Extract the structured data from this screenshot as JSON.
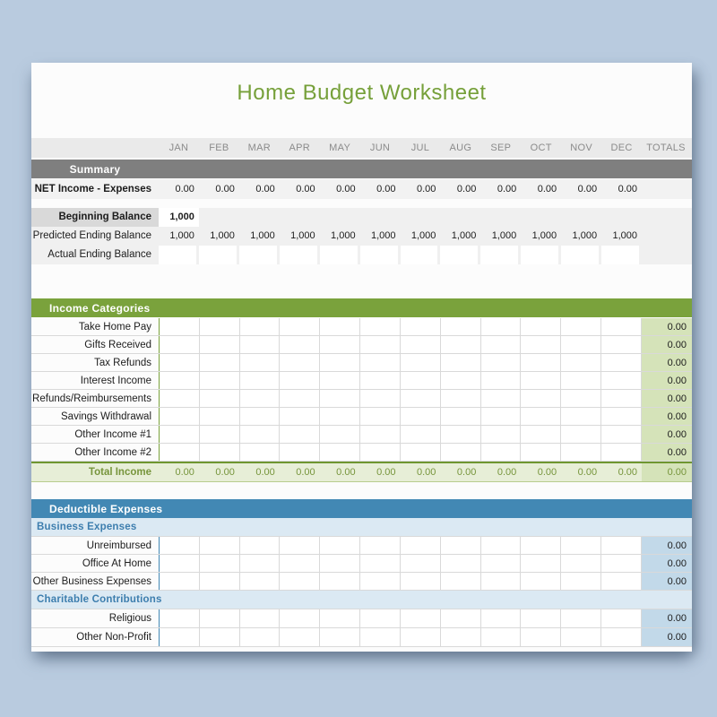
{
  "title": "Home Budget Worksheet",
  "columns": {
    "months": [
      "JAN",
      "FEB",
      "MAR",
      "APR",
      "MAY",
      "JUN",
      "JUL",
      "AUG",
      "SEP",
      "OCT",
      "NOV",
      "DEC"
    ],
    "totals_label": "TOTALS"
  },
  "summary": {
    "header": "Summary",
    "net_row": {
      "label": "NET Income - Expenses",
      "values": [
        "0.00",
        "0.00",
        "0.00",
        "0.00",
        "0.00",
        "0.00",
        "0.00",
        "0.00",
        "0.00",
        "0.00",
        "0.00",
        "0.00"
      ],
      "total": ""
    },
    "beginning_row": {
      "label": "Beginning Balance",
      "values": [
        "1,000",
        "",
        "",
        "",
        "",
        "",
        "",
        "",
        "",
        "",
        "",
        ""
      ]
    },
    "predicted_row": {
      "label": "Predicted Ending Balance",
      "values": [
        "1,000",
        "1,000",
        "1,000",
        "1,000",
        "1,000",
        "1,000",
        "1,000",
        "1,000",
        "1,000",
        "1,000",
        "1,000",
        "1,000"
      ]
    },
    "actual_row": {
      "label": "Actual Ending Balance",
      "values": [
        "",
        "",
        "",
        "",
        "",
        "",
        "",
        "",
        "",
        "",
        "",
        ""
      ]
    }
  },
  "income": {
    "header": "Income Categories",
    "rows": [
      {
        "label": "Take Home Pay",
        "total": "0.00"
      },
      {
        "label": "Gifts Received",
        "total": "0.00"
      },
      {
        "label": "Tax Refunds",
        "total": "0.00"
      },
      {
        "label": "Interest Income",
        "total": "0.00"
      },
      {
        "label": "Refunds/Reimbursements",
        "total": "0.00"
      },
      {
        "label": "Savings Withdrawal",
        "total": "0.00"
      },
      {
        "label": "Other Income #1",
        "total": "0.00"
      },
      {
        "label": "Other Income #2",
        "total": "0.00"
      }
    ],
    "total_row": {
      "label": "Total Income",
      "values": [
        "0.00",
        "0.00",
        "0.00",
        "0.00",
        "0.00",
        "0.00",
        "0.00",
        "0.00",
        "0.00",
        "0.00",
        "0.00",
        "0.00"
      ],
      "total": "0.00"
    }
  },
  "expenses": {
    "header": "Deductible Expenses",
    "business": {
      "subheader": "Business Expenses",
      "rows": [
        {
          "label": "Unreimbursed",
          "total": "0.00"
        },
        {
          "label": "Office At Home",
          "total": "0.00"
        },
        {
          "label": "Other Business Expenses",
          "total": "0.00"
        }
      ]
    },
    "charitable": {
      "subheader": "Charitable Contributions",
      "rows": [
        {
          "label": "Religious",
          "total": "0.00"
        },
        {
          "label": "Other Non-Profit",
          "total": "0.00"
        }
      ]
    }
  },
  "colors": {
    "page-bg": "#b9cbdf",
    "title-green": "#76a03a",
    "green": "#7aa23c",
    "green-light": "#d5e3b9",
    "green-pale": "#e7eed7",
    "green-text": "#77953c",
    "blue": "#4288b4",
    "blue-pale": "#dbe9f3",
    "blue-light": "#c2d9e9",
    "blue-text": "#3d7eae",
    "gray-bar": "#7f7f7f",
    "months-bg": "#eaeaea",
    "month-text": "#8b8b8b",
    "grid": "#d9d9d9"
  }
}
